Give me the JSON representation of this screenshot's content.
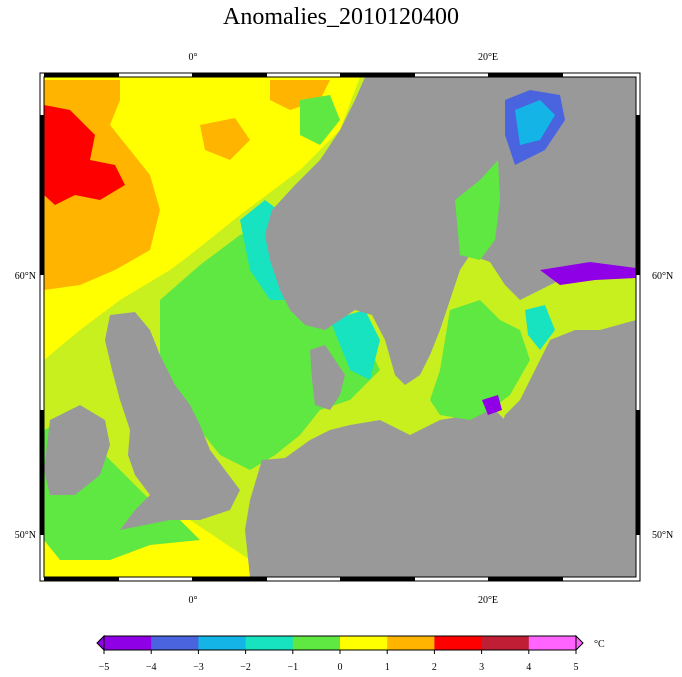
{
  "title": "Anomalies_2010120400",
  "map": {
    "top_lon_labels": [
      "0°",
      "20°E"
    ],
    "bottom_lon_labels": [
      "0°",
      "20°E"
    ],
    "left_lat_labels": [
      "60°N",
      "50°N"
    ],
    "right_lat_labels": [
      "60°N",
      "50°N"
    ],
    "land_color": "#999999"
  },
  "colorbar": {
    "unit": "°C",
    "tick_labels": [
      "−5",
      "−4",
      "−3",
      "−2",
      "−1",
      "0",
      "1",
      "2",
      "3",
      "4",
      "5"
    ],
    "colors": [
      "#8f00e6",
      "#4a64e0",
      "#14b4e6",
      "#18e3c0",
      "#5fe842",
      "#c8f01e",
      "#ffff00",
      "#ffb400",
      "#ff0000",
      "#c01e34",
      "#ff64ff"
    ]
  }
}
